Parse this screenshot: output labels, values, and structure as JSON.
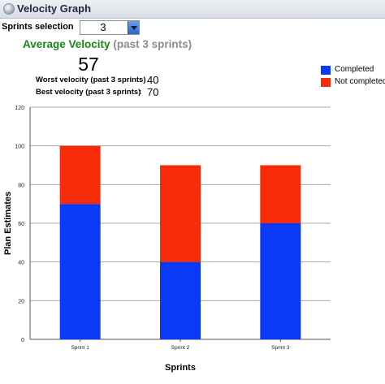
{
  "window": {
    "title": "Velocity Graph"
  },
  "sprints_selection": {
    "label": "Sprints selection",
    "value": "3"
  },
  "average": {
    "title": "Average Velocity",
    "subtitle": "(past 3 sprints)",
    "value": "57"
  },
  "worst": {
    "label": "Worst velocity (past 3 sprints)",
    "sep": ":",
    "value": "40"
  },
  "best": {
    "label": "Best velocity (past 3 sprints)",
    "sep": ":",
    "value": "70"
  },
  "colors": {
    "completed": "#0a3af5",
    "not_completed": "#f62b08",
    "accent_title": "#168a16"
  },
  "chart_data": {
    "type": "bar",
    "stacked": true,
    "categories": [
      "Sprint 1",
      "Sprint 2",
      "Sprint 3"
    ],
    "series": [
      {
        "name": "Completed",
        "values": [
          70,
          40,
          60
        ]
      },
      {
        "name": "Not completed",
        "values": [
          30,
          50,
          30
        ]
      }
    ],
    "xlabel": "Sprints",
    "ylabel": "Plan Estimates",
    "ylim": [
      0,
      120
    ],
    "yticks": [
      0,
      20,
      40,
      60,
      80,
      100,
      120
    ],
    "grid": true,
    "legend": "top-right"
  }
}
